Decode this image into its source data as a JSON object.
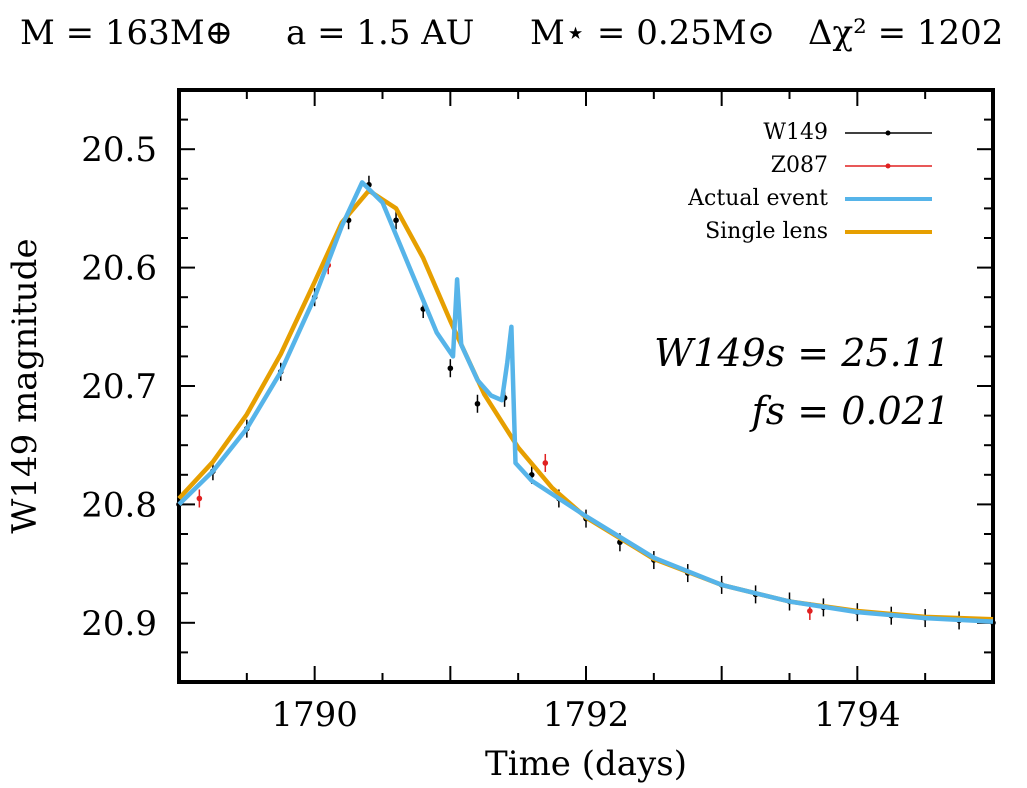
{
  "header": {
    "mass_planet": "M = 163M⊕",
    "semi_major_axis": "a = 1.5 AU",
    "mass_star": "M⋆ = 0.25M⊙",
    "delta_chi2": "Δχ² = 1202"
  },
  "annotations": {
    "source_magnitude": "W149s = 25.11",
    "blend_fraction": "fs = 0.021"
  },
  "chart_data": {
    "type": "line",
    "xlabel": "Time (days)",
    "ylabel": "W149 magnitude",
    "xlim": [
      1789.0,
      1795.0
    ],
    "ylim": [
      20.95,
      20.45
    ],
    "y_inverted": true,
    "grid": false,
    "legend_position": "top-right",
    "x_ticks": [
      "1790",
      "1792",
      "1794"
    ],
    "y_ticks": [
      "20.5",
      "20.6",
      "20.7",
      "20.8",
      "20.9"
    ],
    "series": [
      {
        "name": "W149",
        "style": "points-with-errorbars",
        "color": "#000000",
        "x": [
          1789.0,
          1789.25,
          1789.5,
          1789.75,
          1790.0,
          1790.25,
          1790.4,
          1790.6,
          1790.8,
          1791.0,
          1791.2,
          1791.4,
          1791.6,
          1791.8,
          1792.0,
          1792.25,
          1792.5,
          1792.75,
          1793.0,
          1793.25,
          1793.5,
          1793.75,
          1794.0,
          1794.25,
          1794.5,
          1794.75,
          1795.0
        ],
        "y": [
          20.8,
          20.772,
          20.736,
          20.688,
          20.625,
          20.56,
          20.53,
          20.56,
          20.635,
          20.685,
          20.715,
          20.71,
          20.775,
          20.795,
          20.812,
          20.832,
          20.847,
          20.858,
          20.868,
          20.876,
          20.882,
          20.887,
          20.891,
          20.894,
          20.896,
          20.898,
          20.9
        ]
      },
      {
        "name": "Z087",
        "style": "points-with-errorbars",
        "color": "#e02020",
        "x": [
          1789.15,
          1790.1,
          1791.7,
          1793.65
        ],
        "y": [
          20.795,
          20.598,
          20.765,
          20.89
        ]
      },
      {
        "name": "Actual event",
        "style": "line",
        "color": "#56b4e9",
        "x": [
          1789.0,
          1789.25,
          1789.5,
          1789.75,
          1790.0,
          1790.2,
          1790.35,
          1790.5,
          1790.7,
          1790.9,
          1791.02,
          1791.05,
          1791.08,
          1791.2,
          1791.3,
          1791.38,
          1791.42,
          1791.45,
          1791.48,
          1791.6,
          1791.8,
          1792.0,
          1792.5,
          1793.0,
          1793.5,
          1794.0,
          1794.5,
          1795.0
        ],
        "y": [
          20.8,
          20.772,
          20.736,
          20.688,
          20.625,
          20.565,
          20.528,
          20.545,
          20.6,
          20.655,
          20.675,
          20.61,
          20.665,
          20.695,
          20.708,
          20.712,
          20.68,
          20.65,
          20.765,
          20.78,
          20.795,
          20.81,
          20.845,
          20.868,
          20.882,
          20.891,
          20.896,
          20.899
        ]
      },
      {
        "name": "Single lens",
        "style": "line",
        "color": "#e69f00",
        "x": [
          1789.0,
          1789.25,
          1789.5,
          1789.75,
          1790.0,
          1790.2,
          1790.4,
          1790.6,
          1790.8,
          1791.0,
          1791.25,
          1791.5,
          1791.75,
          1792.0,
          1792.5,
          1793.0,
          1793.5,
          1794.0,
          1794.5,
          1795.0
        ],
        "y": [
          20.795,
          20.764,
          20.724,
          20.673,
          20.612,
          20.562,
          20.535,
          20.55,
          20.592,
          20.645,
          20.707,
          20.752,
          20.786,
          20.811,
          20.846,
          20.868,
          20.882,
          20.89,
          20.895,
          20.897
        ]
      }
    ]
  }
}
